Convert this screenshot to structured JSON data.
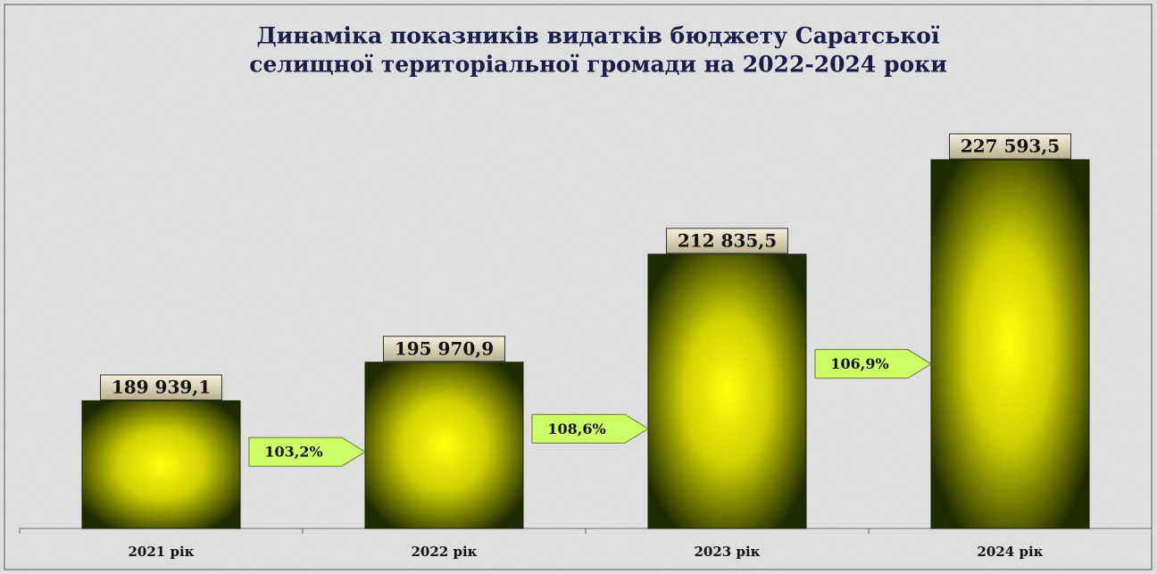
{
  "chart_data": {
    "type": "bar",
    "title": "Динаміка показників видатків бюджету Саратської",
    "subtitle": "селищної територіальної громади на 2022-2024 роки",
    "categories": [
      "2021 рік",
      "2022 рік",
      "2023 рік",
      "2024 рік"
    ],
    "values": [
      189939.1,
      195970.9,
      212835.5,
      227593.5
    ],
    "value_labels": [
      "189 939,1",
      "195 970,9",
      "212 835,5",
      "227 593,5"
    ],
    "ylim": [
      170000,
      240000
    ],
    "growth": {
      "values": [
        103.2,
        108.6,
        106.9
      ],
      "value_labels": [
        "103,2%",
        "108,6%",
        "106,9%"
      ],
      "color": "#ccff66"
    },
    "color": "#ffff00"
  }
}
